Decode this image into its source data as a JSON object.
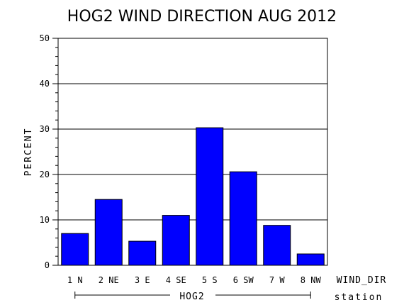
{
  "chart_data": {
    "type": "bar",
    "title": "HOG2 WIND DIRECTION AUG 2012",
    "ylabel": "PERCENT",
    "xlabel": "WIND_DIR",
    "group_axis_label": "station",
    "group_label": "HOG2",
    "categories": [
      "1 N",
      "2 NE",
      "3 E",
      "4 SE",
      "5 S",
      "6 SW",
      "7 W",
      "8 NW"
    ],
    "values": [
      7.0,
      14.5,
      5.3,
      11.0,
      30.3,
      20.6,
      8.8,
      2.5
    ],
    "ylim": [
      0,
      50
    ],
    "yticks": [
      0,
      10,
      20,
      30,
      40,
      50
    ],
    "bar_color": "#0000ff",
    "grid": true
  }
}
